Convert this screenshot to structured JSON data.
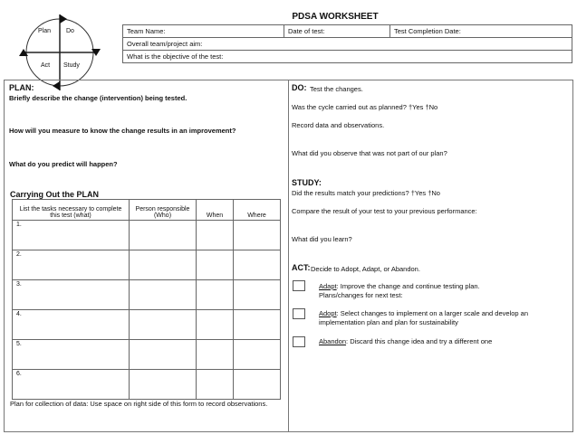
{
  "title": "PDSA WORKSHEET",
  "cycle": {
    "plan": "Plan",
    "do": "Do",
    "act": "Act",
    "study": "Study"
  },
  "header": {
    "team_name": "Team Name:",
    "date_of_test": "Date of test:",
    "completion_date": "Test Completion Date:",
    "aim": "Overall team/project aim:",
    "objective": "What is the objective of the test:"
  },
  "plan": {
    "heading": "PLAN:",
    "q1": "Briefly describe the change (intervention) being tested.",
    "q2": "How will you measure to know the change results in an improvement?",
    "q3": "What do you predict will happen?"
  },
  "carrying": {
    "heading": "Carrying Out the PLAN",
    "columns": [
      "List the tasks necessary to complete this test (what)",
      "Person responsible (Who)",
      "When",
      "Where"
    ],
    "rows": [
      "1.",
      "2.",
      "3.",
      "4.",
      "5.",
      "6."
    ],
    "footer": "Plan for collection of data: Use space on right side of this form to record observations."
  },
  "do": {
    "heading": "DO:",
    "subtitle": "Test the changes.",
    "q1": "Was the cycle carried out as planned?  †Yes †No",
    "q2": "Record data and observations.",
    "q3": "What did you observe that was not part of our plan?"
  },
  "study": {
    "heading": "STUDY:",
    "q1": "Did the results match your predictions?  †Yes †No",
    "q2": "Compare the result of your test to your previous performance:",
    "q3": "What did you learn?"
  },
  "act": {
    "heading": "ACT:",
    "subtitle": "Decide to Adopt, Adapt, or Abandon.",
    "options": [
      {
        "label": "Adapt",
        "text": ":  Improve the change and continue testing plan.",
        "text2": "Plans/changes for next test:"
      },
      {
        "label": "Adopt",
        "text": ":  Select changes to implement on a larger scale and develop an",
        "text2": "implementation plan and plan for sustainability"
      },
      {
        "label": "Abandon",
        "text": ":  Discard this change idea and try a different one",
        "text2": ""
      }
    ]
  }
}
